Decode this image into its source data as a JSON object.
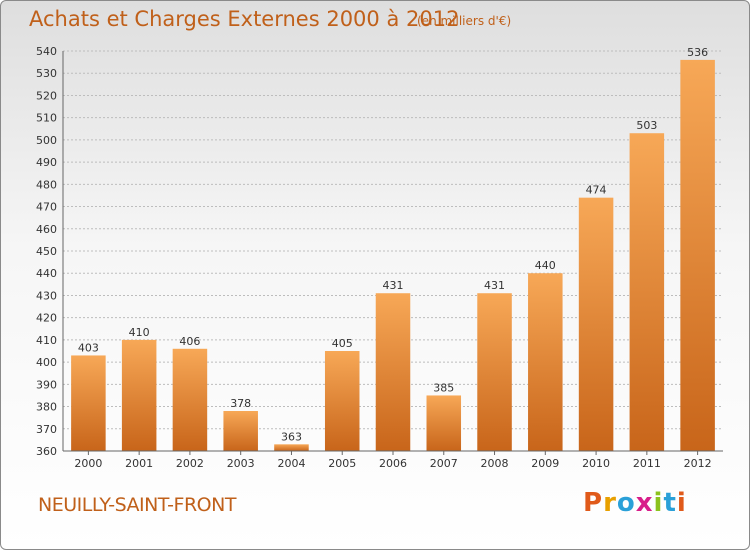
{
  "header": {
    "title": "Achats et Charges Externes 2000 à 2012",
    "subtitle": "(en milliers d'€)"
  },
  "footer": {
    "commune": "NEUILLY-SAINT-FRONT",
    "logo_text": "Proxiti",
    "logo_colors": [
      "#e05a1a",
      "#e8a000",
      "#2aa0d8",
      "#d81e8a",
      "#8cc21e",
      "#2aa0d8",
      "#e05a1a"
    ]
  },
  "colors": {
    "bar": "#f08a2c",
    "bar_highlight": "#f7a857",
    "bar_shadow": "#c8651a",
    "text_accent": "#c0601a"
  },
  "chart_data": {
    "type": "bar",
    "categories": [
      "2000",
      "2001",
      "2002",
      "2003",
      "2004",
      "2005",
      "2006",
      "2007",
      "2008",
      "2009",
      "2010",
      "2011",
      "2012"
    ],
    "values": [
      403,
      410,
      406,
      378,
      363,
      405,
      431,
      385,
      431,
      440,
      474,
      503,
      536
    ],
    "ylim": [
      360,
      540
    ],
    "yticks": [
      360,
      370,
      380,
      390,
      400,
      410,
      420,
      430,
      440,
      450,
      460,
      470,
      480,
      490,
      500,
      510,
      520,
      530,
      540
    ],
    "grid": true
  }
}
